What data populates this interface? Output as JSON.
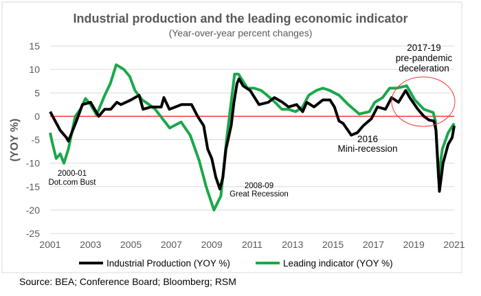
{
  "chart_data": {
    "type": "line",
    "title": "Industrial production and the leading economic indicator",
    "subtitle": "(Year-over-year percent changes)",
    "ylabel": "(YOY %)",
    "xlabel": "",
    "ylim": [
      -25,
      15
    ],
    "xlim": [
      2001,
      2021
    ],
    "yticks": [
      "15",
      "10",
      "5",
      "0",
      "-5",
      "-10",
      "-15",
      "-20",
      "-25"
    ],
    "xticks": [
      "2001",
      "2003",
      "2005",
      "2007",
      "2009",
      "2011",
      "2013",
      "2015",
      "2017",
      "2019",
      "2021"
    ],
    "grid": true,
    "legend_position": "bottom",
    "series": [
      {
        "name": "Industrial Production (YOY %)",
        "color": "#000000",
        "points": [
          [
            2001.0,
            1
          ],
          [
            2001.5,
            -3
          ],
          [
            2001.8,
            -4.5
          ],
          [
            2001.9,
            -5.3
          ],
          [
            2002.3,
            -1
          ],
          [
            2002.6,
            2.5
          ],
          [
            2003.0,
            3
          ],
          [
            2003.4,
            0
          ],
          [
            2003.7,
            1.5
          ],
          [
            2004.0,
            1.5
          ],
          [
            2004.3,
            3
          ],
          [
            2004.5,
            2.5
          ],
          [
            2005.0,
            3.5
          ],
          [
            2005.4,
            4.5
          ],
          [
            2005.6,
            1.5
          ],
          [
            2006.0,
            2
          ],
          [
            2006.5,
            2
          ],
          [
            2006.63,
            4
          ],
          [
            2006.9,
            1.5
          ],
          [
            2007.2,
            2
          ],
          [
            2007.5,
            2.5
          ],
          [
            2008.0,
            2.5
          ],
          [
            2008.3,
            0
          ],
          [
            2008.6,
            -2
          ],
          [
            2008.8,
            -7
          ],
          [
            2009.0,
            -9
          ],
          [
            2009.2,
            -13
          ],
          [
            2009.4,
            -15.5
          ],
          [
            2009.55,
            -13
          ],
          [
            2009.7,
            -7
          ],
          [
            2009.96,
            -2
          ],
          [
            2010.1,
            3
          ],
          [
            2010.25,
            7
          ],
          [
            2010.35,
            8
          ],
          [
            2010.55,
            6.5
          ],
          [
            2010.9,
            5.5
          ],
          [
            2011.34,
            2.5
          ],
          [
            2011.8,
            3
          ],
          [
            2012.1,
            4
          ],
          [
            2012.5,
            3
          ],
          [
            2012.8,
            2
          ],
          [
            2013.2,
            2.5
          ],
          [
            2013.5,
            1
          ],
          [
            2013.7,
            3
          ],
          [
            2014.06,
            2
          ],
          [
            2014.5,
            3.5
          ],
          [
            2014.85,
            3.5
          ],
          [
            2015.07,
            2
          ],
          [
            2015.3,
            -1
          ],
          [
            2015.5,
            -1.5
          ],
          [
            2015.9,
            -4
          ],
          [
            2016.2,
            -3.5
          ],
          [
            2016.5,
            -2
          ],
          [
            2016.9,
            -0.5
          ],
          [
            2017.2,
            2
          ],
          [
            2017.6,
            1.5
          ],
          [
            2017.9,
            4
          ],
          [
            2018.24,
            3
          ],
          [
            2018.6,
            5.5
          ],
          [
            2018.8,
            4
          ],
          [
            2019.2,
            1.5
          ],
          [
            2019.5,
            0
          ],
          [
            2019.75,
            -0.8
          ],
          [
            2020.0,
            -1
          ],
          [
            2020.1,
            -3
          ],
          [
            2020.27,
            -16
          ],
          [
            2020.45,
            -10
          ],
          [
            2020.7,
            -6
          ],
          [
            2020.9,
            -4.5
          ],
          [
            2021.0,
            -2
          ]
        ]
      },
      {
        "name": "Leading indicator (YOY %)",
        "color": "#1aa84a",
        "points": [
          [
            2001.0,
            -3.5
          ],
          [
            2001.1,
            -5.5
          ],
          [
            2001.3,
            -9
          ],
          [
            2001.5,
            -8
          ],
          [
            2001.68,
            -10
          ],
          [
            2001.9,
            -7
          ],
          [
            2002.24,
            0
          ],
          [
            2002.5,
            1.5
          ],
          [
            2002.75,
            3.8
          ],
          [
            2003.0,
            2.5
          ],
          [
            2003.3,
            0.3
          ],
          [
            2003.7,
            4.5
          ],
          [
            2003.98,
            7
          ],
          [
            2004.27,
            11
          ],
          [
            2004.65,
            10
          ],
          [
            2004.94,
            8.5
          ],
          [
            2005.2,
            5.5
          ],
          [
            2005.56,
            3.5
          ],
          [
            2005.9,
            2.5
          ],
          [
            2006.2,
            1.5
          ],
          [
            2006.47,
            0
          ],
          [
            2006.92,
            -2.5
          ],
          [
            2007.48,
            -1.2
          ],
          [
            2007.93,
            -4
          ],
          [
            2008.38,
            -9.5
          ],
          [
            2008.72,
            -15
          ],
          [
            2009.11,
            -20
          ],
          [
            2009.45,
            -17
          ],
          [
            2009.73,
            -5
          ],
          [
            2009.96,
            3
          ],
          [
            2010.13,
            9
          ],
          [
            2010.32,
            9
          ],
          [
            2010.77,
            6
          ],
          [
            2011.1,
            6
          ],
          [
            2011.45,
            5.5
          ],
          [
            2011.74,
            4.5
          ],
          [
            2012.13,
            3
          ],
          [
            2012.47,
            1.5
          ],
          [
            2012.8,
            1.5
          ],
          [
            2013.15,
            1
          ],
          [
            2013.5,
            2
          ],
          [
            2013.8,
            4.5
          ],
          [
            2014.17,
            5.5
          ],
          [
            2014.5,
            6
          ],
          [
            2014.85,
            5.5
          ],
          [
            2015.3,
            4.5
          ],
          [
            2015.76,
            2.5
          ],
          [
            2016.3,
            0.5
          ],
          [
            2016.8,
            1
          ],
          [
            2017.07,
            3
          ],
          [
            2017.46,
            4
          ],
          [
            2017.8,
            6
          ],
          [
            2018.14,
            6
          ],
          [
            2018.65,
            6.5
          ],
          [
            2019.05,
            3.5
          ],
          [
            2019.5,
            1.5
          ],
          [
            2019.96,
            0.8
          ],
          [
            2020.07,
            -1
          ],
          [
            2020.22,
            -13
          ],
          [
            2020.41,
            -7
          ],
          [
            2020.7,
            -3.5
          ],
          [
            2021.0,
            -1.5
          ]
        ]
      }
    ],
    "annotations": [
      {
        "lines": [
          "2000-01",
          "Dot.com Bust"
        ]
      },
      {
        "lines": [
          "2008-09",
          "Great Recession"
        ]
      },
      {
        "lines": [
          "2016",
          "Mini-recession"
        ]
      },
      {
        "lines": [
          "2017-19",
          "pre-pandemic",
          "deceleration"
        ]
      }
    ],
    "reference_line_color": "#ff3333"
  },
  "source": "Source: BEA; Conference Board;  Bloomberg; RSM"
}
